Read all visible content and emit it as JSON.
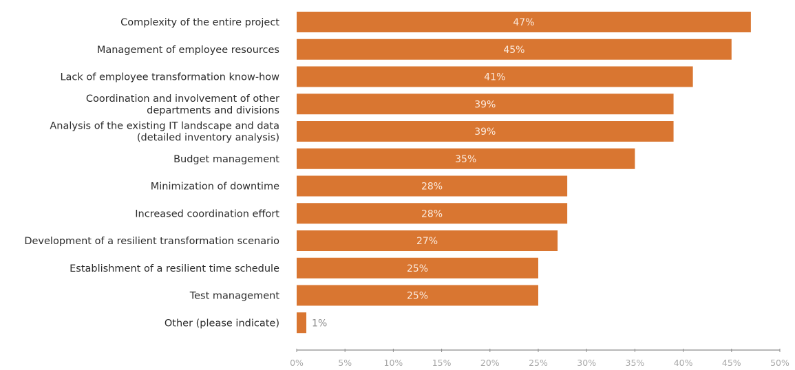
{
  "chart_data": {
    "type": "bar",
    "orientation": "horizontal",
    "title": "",
    "xlabel": "",
    "ylabel": "",
    "categories": [
      [
        "Complexity of the entire project"
      ],
      [
        "Management of employee resources"
      ],
      [
        "Lack of employee transformation know-how"
      ],
      [
        "Coordination and involvement of other",
        "departments and divisions"
      ],
      [
        "Analysis of the existing IT landscape and data",
        "(detailed inventory analysis)"
      ],
      [
        "Budget management"
      ],
      [
        "Minimization of downtime"
      ],
      [
        "Increased coordination effort"
      ],
      [
        "Development of a resilient transformation scenario"
      ],
      [
        "Establishment of a resilient time schedule"
      ],
      [
        "Test management"
      ],
      [
        "Other (please indicate)"
      ]
    ],
    "values": [
      47,
      45,
      41,
      39,
      39,
      35,
      28,
      28,
      27,
      25,
      25,
      1
    ],
    "value_labels": [
      "47%",
      "45%",
      "41%",
      "39%",
      "39%",
      "35%",
      "28%",
      "28%",
      "27%",
      "25%",
      "25%",
      "1%"
    ],
    "xlim": [
      0,
      50
    ],
    "xticks": [
      0,
      5,
      10,
      15,
      20,
      25,
      30,
      35,
      40,
      45,
      50
    ],
    "xtick_labels": [
      "0%",
      "5%",
      "10%",
      "15%",
      "20%",
      "25%",
      "30%",
      "35%",
      "40%",
      "45%",
      "50%"
    ],
    "grid": false,
    "legend": "none",
    "colors": {
      "bar": "#d97631",
      "axis": "#8c8c8c"
    }
  }
}
